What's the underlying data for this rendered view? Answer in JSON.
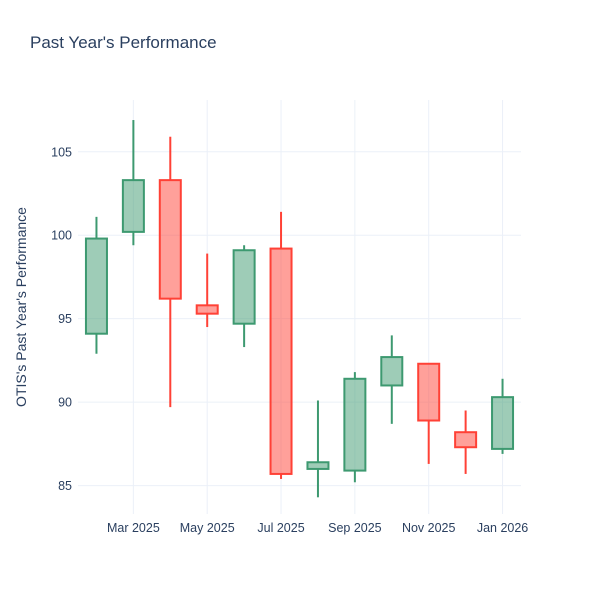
{
  "chart": {
    "title": "Past Year's Performance",
    "ylabel": "OTIS's Past Year's Performance"
  },
  "chart_data": {
    "type": "candlestick",
    "title": "Past Year's Performance",
    "xlabel": "",
    "ylabel": "OTIS's Past Year's Performance",
    "legend": "none",
    "grid": true,
    "ylim": [
      83.3,
      108.1
    ],
    "y_ticks": [
      85,
      90,
      95,
      100,
      105
    ],
    "x_ticks": {
      "indices": [
        1,
        3,
        5,
        7,
        9,
        11
      ],
      "labels": [
        "Mar 2025",
        "May 2025",
        "Jul 2025",
        "Sep 2025",
        "Nov 2025",
        "Jan 2026"
      ]
    },
    "ohlc": [
      {
        "x": "Feb 2025",
        "open": 94.1,
        "high": 101.1,
        "low": 92.9,
        "close": 99.8
      },
      {
        "x": "Mar 2025",
        "open": 100.2,
        "high": 106.9,
        "low": 99.4,
        "close": 103.3
      },
      {
        "x": "Apr 2025",
        "open": 103.3,
        "high": 105.9,
        "low": 89.7,
        "close": 96.2
      },
      {
        "x": "May 2025",
        "open": 95.8,
        "high": 98.9,
        "low": 94.5,
        "close": 95.3
      },
      {
        "x": "Jun 2025",
        "open": 94.7,
        "high": 99.4,
        "low": 93.3,
        "close": 99.1
      },
      {
        "x": "Jul 2025",
        "open": 99.2,
        "high": 101.4,
        "low": 85.4,
        "close": 85.7
      },
      {
        "x": "Aug 2025",
        "open": 86.0,
        "high": 90.1,
        "low": 84.3,
        "close": 86.4
      },
      {
        "x": "Sep 2025",
        "open": 85.9,
        "high": 91.8,
        "low": 85.2,
        "close": 91.4
      },
      {
        "x": "Oct 2025",
        "open": 91.0,
        "high": 94.0,
        "low": 88.7,
        "close": 92.7
      },
      {
        "x": "Nov 2025",
        "open": 92.3,
        "high": 92.3,
        "low": 86.3,
        "close": 88.9
      },
      {
        "x": "Dec 2025",
        "open": 88.2,
        "high": 89.5,
        "low": 85.7,
        "close": 87.3
      },
      {
        "x": "Jan 2026",
        "open": 87.2,
        "high": 91.4,
        "low": 86.9,
        "close": 90.3
      }
    ],
    "colors": {
      "increasing_line": "#3D9970",
      "increasing_fill": "rgba(61,153,112,0.5)",
      "decreasing_line": "#FF4136",
      "decreasing_fill": "rgba(255,65,54,0.5)",
      "text": "#2a3f5f",
      "gridline": "#EBF0F8",
      "background": "#ffffff"
    }
  }
}
